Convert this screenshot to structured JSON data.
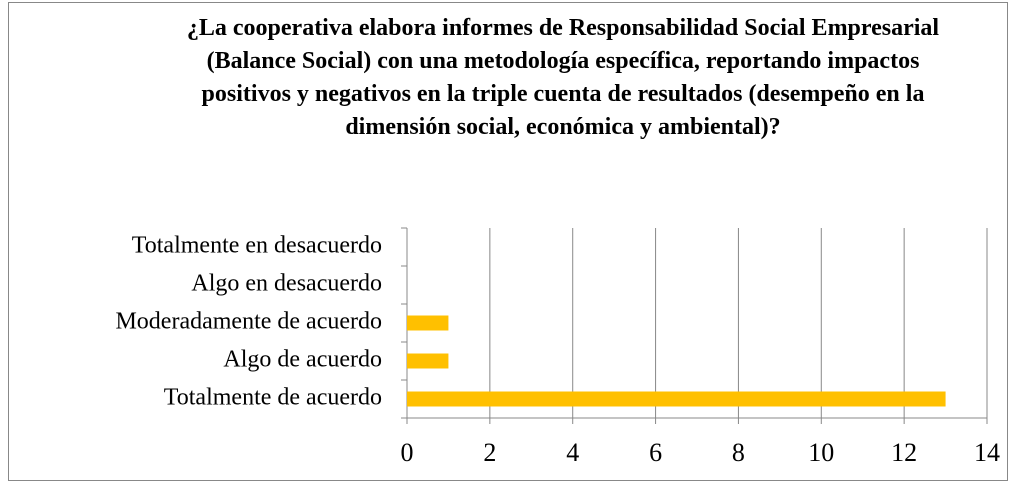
{
  "chart_data": {
    "type": "hbar",
    "title": "¿La cooperativa elabora informes de Responsabilidad Social Empresarial (Balance Social) con una metodología específica, reportando impactos positivos y negativos en la triple cuenta de resultados (desempeño en la dimensión social, económica y ambiental)?",
    "categories": [
      "Totalmente en desacuerdo",
      "Algo en desacuerdo",
      "Moderadamente de acuerdo",
      "Algo de acuerdo",
      "Totalmente de acuerdo"
    ],
    "values": [
      0,
      0,
      1,
      1,
      13
    ],
    "color": "#ffc000",
    "xlim": [
      0,
      14
    ],
    "xticks": [
      0,
      2,
      4,
      6,
      8,
      10,
      12,
      14
    ],
    "grid": true
  }
}
